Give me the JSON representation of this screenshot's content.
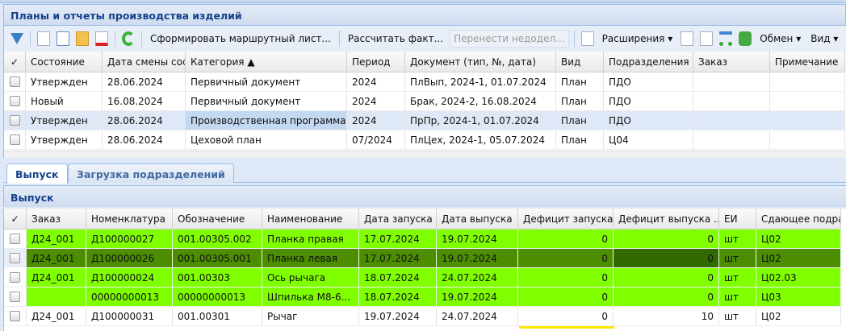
{
  "title": "Планы и отчеты производства изделий",
  "toolbar": {
    "form_route": "Сформировать маршрутный лист...",
    "calc_fact": "Рассчитать факт...",
    "transfer": "Перенести недодел...",
    "extensions": "Расширения",
    "exchange": "Обмен",
    "view": "Вид"
  },
  "top_grid": {
    "columns": [
      "✓",
      "Состояние",
      "Дата смены сост",
      "Категория ▲",
      "Период",
      "Документ (тип, №, дата)",
      "Вид",
      "Подразделения",
      "Заказ",
      "Примечание"
    ],
    "rows": [
      [
        "",
        "Утвержден",
        "28.06.2024",
        "Первичный документ",
        "2024",
        "ПлВып, 2024-1, 01.07.2024",
        "План",
        "ПДО",
        "",
        ""
      ],
      [
        "",
        "Новый",
        "16.08.2024",
        "Первичный документ",
        "2024",
        "Брак, 2024-2, 16.08.2024",
        "План",
        "ПДО",
        "",
        ""
      ],
      [
        "",
        "Утвержден",
        "28.06.2024",
        "Производственная программа",
        "2024",
        "ПрПр, 2024-1, 01.07.2024",
        "План",
        "ПДО",
        "",
        ""
      ],
      [
        "",
        "Утвержден",
        "28.06.2024",
        "Цеховой план",
        "07/2024",
        "ПлЦех, 2024-1, 05.07.2024",
        "План",
        "Ц04",
        "",
        ""
      ]
    ],
    "selected_row": 2
  },
  "tabs": [
    "Выпуск",
    "Загрузка подразделений"
  ],
  "active_tab": 0,
  "panel_title": "Выпуск",
  "bottom_grid": {
    "columns": [
      "✓",
      "Заказ",
      "Номенклатура",
      "Обозначение",
      "Наименование",
      "Дата запуска ▲",
      "Дата выпуска",
      "Дефицит запуска",
      "Дефицит выпуска  ..",
      "ЕИ",
      "Сдающее подразд"
    ],
    "rows": [
      [
        "",
        "Д24_001",
        "Д100000027",
        "001.00305.002",
        "Планка правая",
        "17.07.2024",
        "19.07.2024",
        "0",
        "0",
        "шт",
        "Ц02"
      ],
      [
        "",
        "Д24_001",
        "Д100000026",
        "001.00305.001",
        "Планка левая",
        "17.07.2024",
        "19.07.2024",
        "0",
        "0",
        "шт",
        "Ц02"
      ],
      [
        "",
        "Д24_001",
        "Д100000024",
        "001.00303",
        "Ось рычага",
        "18.07.2024",
        "24.07.2024",
        "0",
        "0",
        "шт",
        "Ц02.03"
      ],
      [
        "",
        "",
        "00000000013",
        "00000000013",
        "Шпилька М8-6...",
        "18.07.2024",
        "19.07.2024",
        "0",
        "0",
        "шт",
        "Ц03"
      ],
      [
        "",
        "Д24_001",
        "Д100000031",
        "001.00301",
        "Рычаг",
        "19.07.2024",
        "24.07.2024",
        "0",
        "10",
        "шт",
        "Ц02"
      ]
    ],
    "highlight_rows": [
      0,
      1,
      2,
      3
    ],
    "selected_row": 1
  },
  "colors": {
    "highlight": "#80ff00",
    "selected_highlight": "#4c8e00",
    "header_text": "#15428b"
  }
}
